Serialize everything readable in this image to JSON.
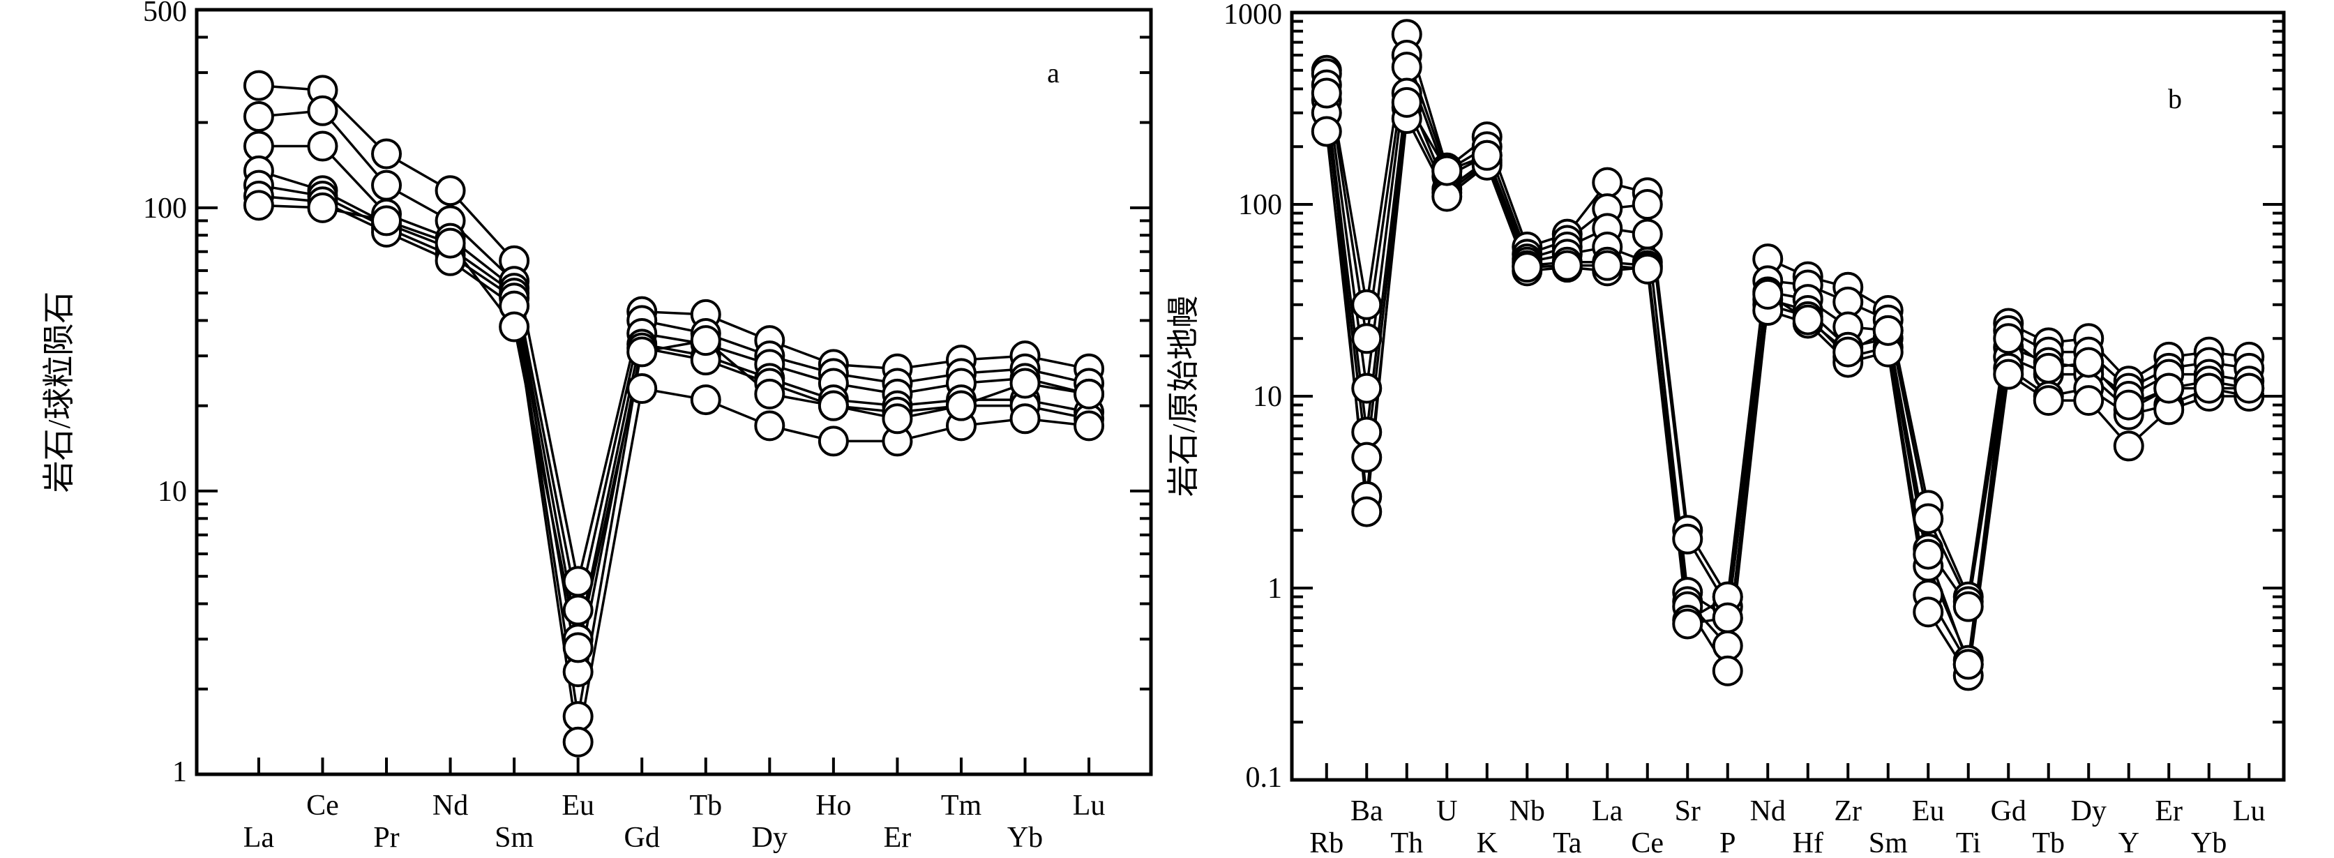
{
  "chart_data": [
    {
      "type": "line",
      "panel_label": "a",
      "ylabel": "岩石/球粒陨石",
      "yscale": "log",
      "ylim": [
        1,
        500
      ],
      "yticks": [
        "1",
        "10",
        "100",
        "500"
      ],
      "categories": [
        "La",
        "Ce",
        "Pr",
        "Nd",
        "Sm",
        "Eu",
        "Gd",
        "Tb",
        "Dy",
        "Ho",
        "Er",
        "Tm",
        "Yb",
        "Lu"
      ],
      "marker": "open-circle",
      "series": [
        {
          "values": [
            270,
            260,
            155,
            115,
            65,
            4.8,
            43,
            42,
            34,
            28,
            27,
            29,
            30,
            27
          ]
        },
        {
          "values": [
            210,
            220,
            120,
            90,
            55,
            3.8,
            40,
            36,
            30,
            26,
            24,
            26,
            27,
            24
          ]
        },
        {
          "values": [
            165,
            165,
            95,
            78,
            52,
            3.0,
            36,
            33,
            28,
            24,
            22,
            24,
            25,
            22
          ]
        },
        {
          "values": [
            135,
            115,
            88,
            72,
            50,
            2.3,
            33,
            30,
            25,
            21,
            20,
            21,
            21,
            19
          ]
        },
        {
          "values": [
            120,
            110,
            85,
            68,
            48,
            1.6,
            32,
            29,
            24,
            20,
            19,
            20,
            20,
            18
          ]
        },
        {
          "values": [
            110,
            105,
            82,
            65,
            45,
            1.3,
            23,
            21,
            17,
            15,
            15,
            17,
            18,
            17
          ]
        },
        {
          "values": [
            102,
            100,
            90,
            75,
            38,
            2.8,
            31,
            34,
            22,
            20,
            18,
            20,
            24,
            22
          ]
        }
      ]
    },
    {
      "type": "line",
      "panel_label": "b",
      "ylabel": "岩石/原始地幔",
      "yscale": "log",
      "ylim": [
        0.1,
        1000
      ],
      "yticks": [
        "0.1",
        "1",
        "10",
        "100",
        "1000"
      ],
      "categories": [
        "Rb",
        "Ba",
        "Th",
        "U",
        "K",
        "Nb",
        "Ta",
        "La",
        "Ce",
        "Sr",
        "P",
        "Nd",
        "Hf",
        "Zr",
        "Sm",
        "Eu",
        "Ti",
        "Gd",
        "Tb",
        "Dy",
        "Y",
        "Er",
        "Yb",
        "Lu"
      ],
      "marker": "open-circle",
      "series": [
        {
          "values": [
            500,
            30,
            770,
            155,
            225,
            60,
            70,
            130,
            115,
            2.0,
            0.9,
            52,
            42,
            37,
            28,
            2.7,
            0.9,
            24,
            19,
            20,
            12,
            16,
            17,
            16
          ]
        },
        {
          "values": [
            480,
            20,
            600,
            150,
            200,
            55,
            65,
            95,
            100,
            1.8,
            0.8,
            40,
            38,
            31,
            25,
            2.3,
            0.85,
            22,
            17,
            17,
            11,
            14,
            15,
            14
          ]
        },
        {
          "values": [
            420,
            11,
            520,
            140,
            180,
            52,
            60,
            75,
            70,
            0.95,
            0.7,
            35,
            32,
            23,
            22,
            1.6,
            0.8,
            18,
            15,
            14,
            10,
            13,
            13,
            12
          ]
        },
        {
          "values": [
            350,
            6.5,
            380,
            120,
            170,
            50,
            55,
            60,
            50,
            0.85,
            0.5,
            32,
            28,
            18,
            20,
            1.3,
            0.42,
            16,
            13,
            13,
            8.5,
            11,
            12,
            11
          ]
        },
        {
          "values": [
            300,
            4.8,
            320,
            115,
            165,
            48,
            50,
            50,
            48,
            0.8,
            0.37,
            30,
            26,
            16,
            18,
            0.92,
            0.4,
            14,
            10,
            11,
            8,
            9,
            11,
            10
          ]
        },
        {
          "values": [
            240,
            3.0,
            280,
            110,
            160,
            45,
            47,
            45,
            47,
            0.68,
            0.9,
            28,
            24,
            15,
            17,
            0.75,
            0.35,
            13,
            9.5,
            9.5,
            5.5,
            8.5,
            10,
            10
          ]
        },
        {
          "values": [
            380,
            2.5,
            340,
            150,
            180,
            47,
            48,
            48,
            46,
            0.65,
            0.7,
            34,
            25,
            17,
            22,
            1.5,
            0.4,
            20,
            14,
            15,
            9,
            11,
            11,
            11
          ]
        }
      ]
    }
  ]
}
